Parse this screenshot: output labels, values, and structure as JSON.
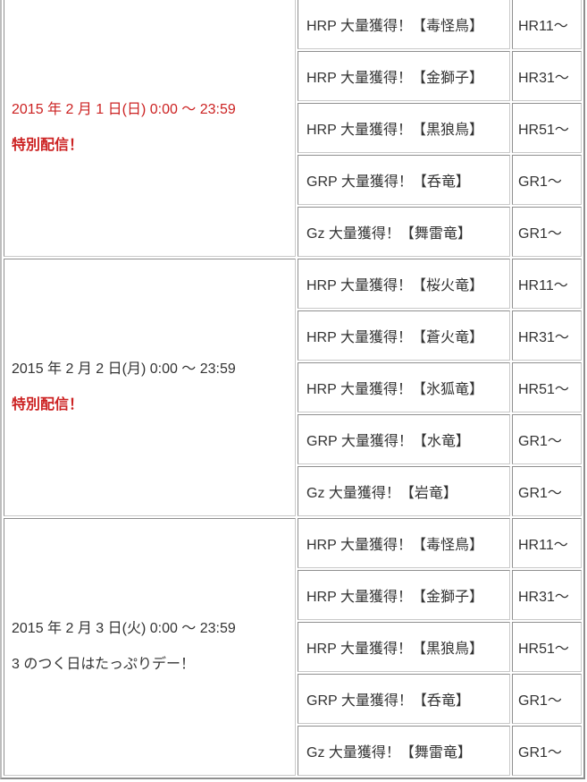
{
  "page": {
    "background": "#ffffff"
  },
  "colors": {
    "accent_red": "#cc2222",
    "text": "#333333",
    "border_dark": "#8f8f8f",
    "border_light": "#c9c9c9"
  },
  "table": {
    "columns": [
      "date",
      "quest",
      "required_rank"
    ],
    "groups": [
      {
        "date": "2015 年 2 月 1 日(日) 0:00 ～ 23:59",
        "date_color": "#cc2222",
        "note": "特別配信！",
        "note_color": "#cc2222",
        "note_weight": "bold",
        "rows": [
          {
            "quest": "HRP 大量獲得！【毒怪鳥】",
            "rank": "HR11～"
          },
          {
            "quest": "HRP 大量獲得！【金獅子】",
            "rank": "HR31～"
          },
          {
            "quest": "HRP 大量獲得！【黒狼鳥】",
            "rank": "HR51～"
          },
          {
            "quest": "GRP 大量獲得！【呑竜】",
            "rank": "GR1～"
          },
          {
            "quest": "Gz 大量獲得！【舞雷竜】",
            "rank": "GR1～"
          }
        ]
      },
      {
        "date": "2015 年 2 月 2 日(月) 0:00 ～ 23:59",
        "date_color": "#333333",
        "note": "特別配信！",
        "note_color": "#cc2222",
        "note_weight": "bold",
        "rows": [
          {
            "quest": "HRP 大量獲得！【桜火竜】",
            "rank": "HR11～"
          },
          {
            "quest": "HRP 大量獲得！【蒼火竜】",
            "rank": "HR31～"
          },
          {
            "quest": "HRP 大量獲得！【氷狐竜】",
            "rank": "HR51～"
          },
          {
            "quest": "GRP 大量獲得！【水竜】",
            "rank": "GR1～"
          },
          {
            "quest": "Gz 大量獲得！【岩竜】",
            "rank": "GR1～"
          }
        ]
      },
      {
        "date": "2015 年 2 月 3 日(火) 0:00 ～ 23:59",
        "date_color": "#333333",
        "note": "3 のつく日はたっぷりデー！",
        "note_color": "#333333",
        "note_weight": "normal",
        "rows": [
          {
            "quest": "HRP 大量獲得！【毒怪鳥】",
            "rank": "HR11～"
          },
          {
            "quest": "HRP 大量獲得！【金獅子】",
            "rank": "HR31～"
          },
          {
            "quest": "HRP 大量獲得！【黒狼鳥】",
            "rank": "HR51～"
          },
          {
            "quest": "GRP 大量獲得！【呑竜】",
            "rank": "GR1～"
          },
          {
            "quest": "Gz 大量獲得！【舞雷竜】",
            "rank": "GR1～"
          }
        ]
      }
    ]
  }
}
